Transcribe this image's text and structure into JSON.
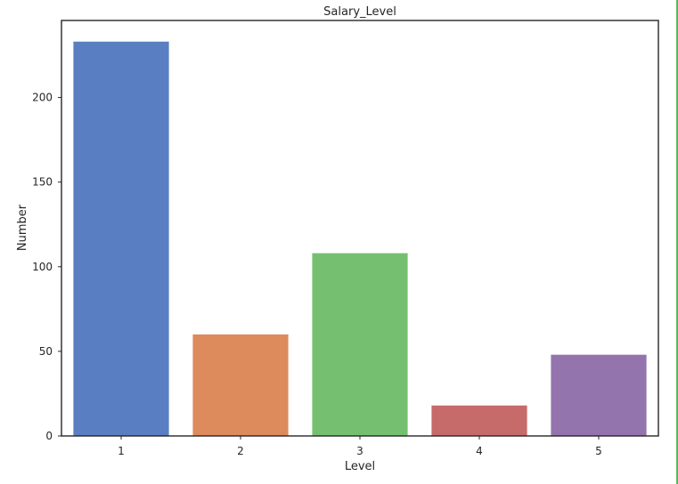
{
  "chart_data": {
    "type": "bar",
    "title": "Salary_Level",
    "xlabel": "Level",
    "ylabel": "Number",
    "categories": [
      "1",
      "2",
      "3",
      "4",
      "5"
    ],
    "values": [
      233,
      60,
      108,
      18,
      48
    ],
    "colors": [
      "#5a7ec2",
      "#dd8a5c",
      "#74c070",
      "#c66a6a",
      "#9374ad"
    ],
    "yticks": [
      0,
      50,
      100,
      150,
      200
    ],
    "ytick_labels": [
      "0",
      "50",
      "100",
      "150",
      "200"
    ],
    "ylim": [
      0,
      245.5
    ],
    "grid": false,
    "legend": "none"
  }
}
